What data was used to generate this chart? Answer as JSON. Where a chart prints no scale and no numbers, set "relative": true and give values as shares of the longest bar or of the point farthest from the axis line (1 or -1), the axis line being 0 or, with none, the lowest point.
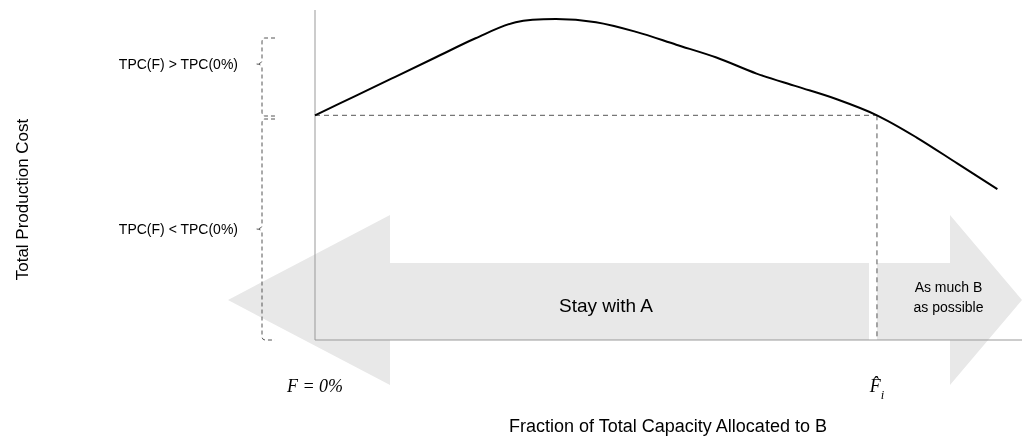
{
  "chart_data": {
    "type": "line",
    "relative": true,
    "xlabel": "Fraction of Total Capacity Allocated to B",
    "categories": [
      "F = 0%",
      null,
      null,
      null,
      null,
      null,
      null,
      null,
      null,
      null,
      null,
      null,
      null,
      null,
      "F̂$_{i}$",
      null,
      null,
      null
    ],
    "series": [
      {
        "color": "#000000",
        "values": [
          0.7,
          0.76,
          0.82,
          0.88,
          0.94,
          0.99,
          1,
          0.99,
          0.96,
          0.92,
          0.88,
          0.83,
          0.79,
          0.75,
          0.7,
          0.63,
          0.55,
          0.47
        ]
      }
    ],
    "ref_lines": [
      {
        "axis": "y",
        "value": 0.7,
        "line_style": "dashed",
        "color": "#555555"
      },
      {
        "axis": "x",
        "value": "F̂$_{i}$",
        "line_style": "dashed",
        "color": "#555555"
      }
    ],
    "marker": "none",
    "line_style": "solid",
    "annotations": [
      "TPC(F) > TPC(0%)",
      "TPC(F) < TPC(0%)",
      "Stay with A",
      "As much B\nas possible",
      "Total Production Cost"
    ]
  }
}
